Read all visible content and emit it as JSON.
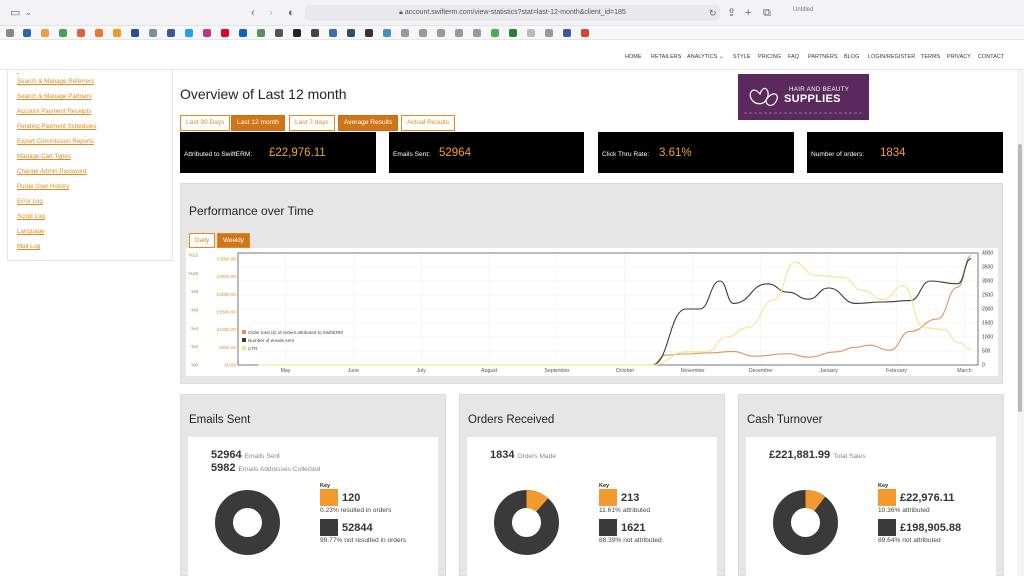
{
  "browser": {
    "url": "account.swifterm.com/view-statistics?stat=last-12-month&client_id=185",
    "window_title": "Untitled"
  },
  "nav": {
    "items": [
      "HOME",
      "RETAILERS",
      "ANALYTICS",
      "STYLE",
      "PRICING",
      "FAQ",
      "PARTNERS",
      "BLOG",
      "LOGIN/REGISTER",
      "TERMS",
      "PRIVACY",
      "CONTACT"
    ]
  },
  "sidebar": {
    "items": [
      "Search & Manage Referrers",
      "Search & Manage Partners",
      "Account Payment Receipts",
      "Pending Payment Schedules",
      "Export Commission Reports",
      "Manage Cart Types",
      "Change Admin Password",
      "Purge User History",
      "Error Log",
      "Script Log",
      "Language",
      "Mail Log"
    ]
  },
  "main": {
    "title": "Overview of Last 12 month",
    "logo": {
      "line1": "HAIR AND BEAUTY",
      "line2": "SUPPLIES"
    },
    "tabs": [
      {
        "label": "Last 30 Days",
        "active": false
      },
      {
        "label": "Last 12 month",
        "active": true
      },
      {
        "label": "Last 7 days",
        "active": false
      },
      {
        "label": "Average Results",
        "active": true
      },
      {
        "label": "Actual Results",
        "active": false
      }
    ],
    "stats": [
      {
        "label": "Attributed to SwiftERM:",
        "value": "£22,976.11"
      },
      {
        "label": "Emails Sent:",
        "value": "52964"
      },
      {
        "label": "Click Thru Rate:",
        "value": "3.61%"
      },
      {
        "label": "Number of orders:",
        "value": "1834"
      }
    ]
  },
  "performance": {
    "title": "Performance over Time",
    "tabs": [
      {
        "label": "Daily",
        "active": false
      },
      {
        "label": "Weekly",
        "active": true
      }
    ]
  },
  "chart_data": {
    "type": "line",
    "x_categories": [
      "May",
      "June",
      "July",
      "August",
      "September",
      "October",
      "November",
      "December",
      "January",
      "February",
      "March"
    ],
    "y_left_ticks": [
      "£0.00",
      "£500.00",
      "£1000.00",
      "£1500.00",
      "£2000.00",
      "£2500.00",
      "£3000.00"
    ],
    "y_left2_ticks": [
      "%0",
      "%2",
      "%4",
      "%6",
      "%8",
      "%10",
      "%12"
    ],
    "y_right_ticks": [
      "0",
      "500",
      "1000",
      "1500",
      "2000",
      "2500",
      "3000",
      "3500",
      "4000"
    ],
    "legend_position": "bottom-left",
    "series": [
      {
        "name": "Order total (£) of orders attributed to SwiftERM",
        "color": "#e0935a",
        "axis": "left",
        "points": [
          [
            0,
            0
          ],
          [
            5.8,
            0
          ],
          [
            6.0,
            280
          ],
          [
            6.3,
            310
          ],
          [
            6.6,
            340
          ],
          [
            7.0,
            380
          ],
          [
            7.3,
            250
          ],
          [
            7.8,
            320
          ],
          [
            8.1,
            220
          ],
          [
            8.5,
            370
          ],
          [
            8.8,
            500
          ],
          [
            9.0,
            560
          ],
          [
            9.3,
            420
          ],
          [
            9.6,
            950
          ],
          [
            10.0,
            1300
          ],
          [
            10.3,
            2200
          ],
          [
            10.5,
            3100
          ]
        ]
      },
      {
        "name": "Number of emails sent",
        "color": "#3a3a3a",
        "axis": "right",
        "points": [
          [
            0,
            0
          ],
          [
            5.8,
            0
          ],
          [
            6.3,
            2000
          ],
          [
            6.5,
            2000
          ],
          [
            6.8,
            3000
          ],
          [
            7.0,
            2200
          ],
          [
            7.5,
            2900
          ],
          [
            7.8,
            2600
          ],
          [
            8.1,
            2350
          ],
          [
            8.4,
            2750
          ],
          [
            8.8,
            2200
          ],
          [
            9.2,
            2250
          ],
          [
            9.6,
            2300
          ],
          [
            9.9,
            3000
          ],
          [
            10.3,
            2900
          ],
          [
            10.5,
            3800
          ]
        ]
      },
      {
        "name": "CTR",
        "color": "#f2e68a",
        "axis": "left2",
        "points": [
          [
            0,
            0
          ],
          [
            5.8,
            0
          ],
          [
            6.3,
            1.4
          ],
          [
            6.6,
            1.4
          ],
          [
            6.9,
            3.0
          ],
          [
            7.2,
            4.0
          ],
          [
            7.6,
            7.0
          ],
          [
            7.9,
            11.0
          ],
          [
            8.2,
            9.6
          ],
          [
            8.6,
            9.4
          ],
          [
            8.9,
            8.0
          ],
          [
            9.2,
            7.0
          ],
          [
            9.5,
            8.5
          ],
          [
            9.8,
            4.0
          ],
          [
            10.1,
            3.8
          ],
          [
            10.3,
            2.4
          ],
          [
            10.5,
            1.7
          ]
        ]
      }
    ]
  },
  "panels": [
    {
      "title": "Emails Sent",
      "line1_value": "52964",
      "line1_label": "Emails Sent",
      "line2_value": "5982",
      "line2_label": "Emails Addresses Collected",
      "key_label": "Key",
      "key1_value": "120",
      "key1_desc": "0.23% resulted in orders",
      "key1_fraction": 0.0023,
      "key2_value": "52844",
      "key2_desc": "99.77% not resulted in orders"
    },
    {
      "title": "Orders Received",
      "line1_value": "1834",
      "line1_label": "Orders Made",
      "key_label": "Key",
      "key1_value": "213",
      "key1_desc": "11.61% attributed",
      "key1_fraction": 0.1161,
      "key2_value": "1621",
      "key2_desc": "88.39% not attributed"
    },
    {
      "title": "Cash Turnover",
      "line1_value": "£221,881.99",
      "line1_label": "Total Sales",
      "key_label": "Key",
      "key1_value": "£22,976.11",
      "key1_desc": "10.36% attributed",
      "key1_fraction": 0.1036,
      "key2_value": "£198,905.88",
      "key2_desc": "89.64% not attributed"
    }
  ],
  "colors": {
    "accent": "#e48a1d",
    "accent_active": "#d07619",
    "dark": "#333333",
    "logo_bg": "#5b2a5c"
  }
}
